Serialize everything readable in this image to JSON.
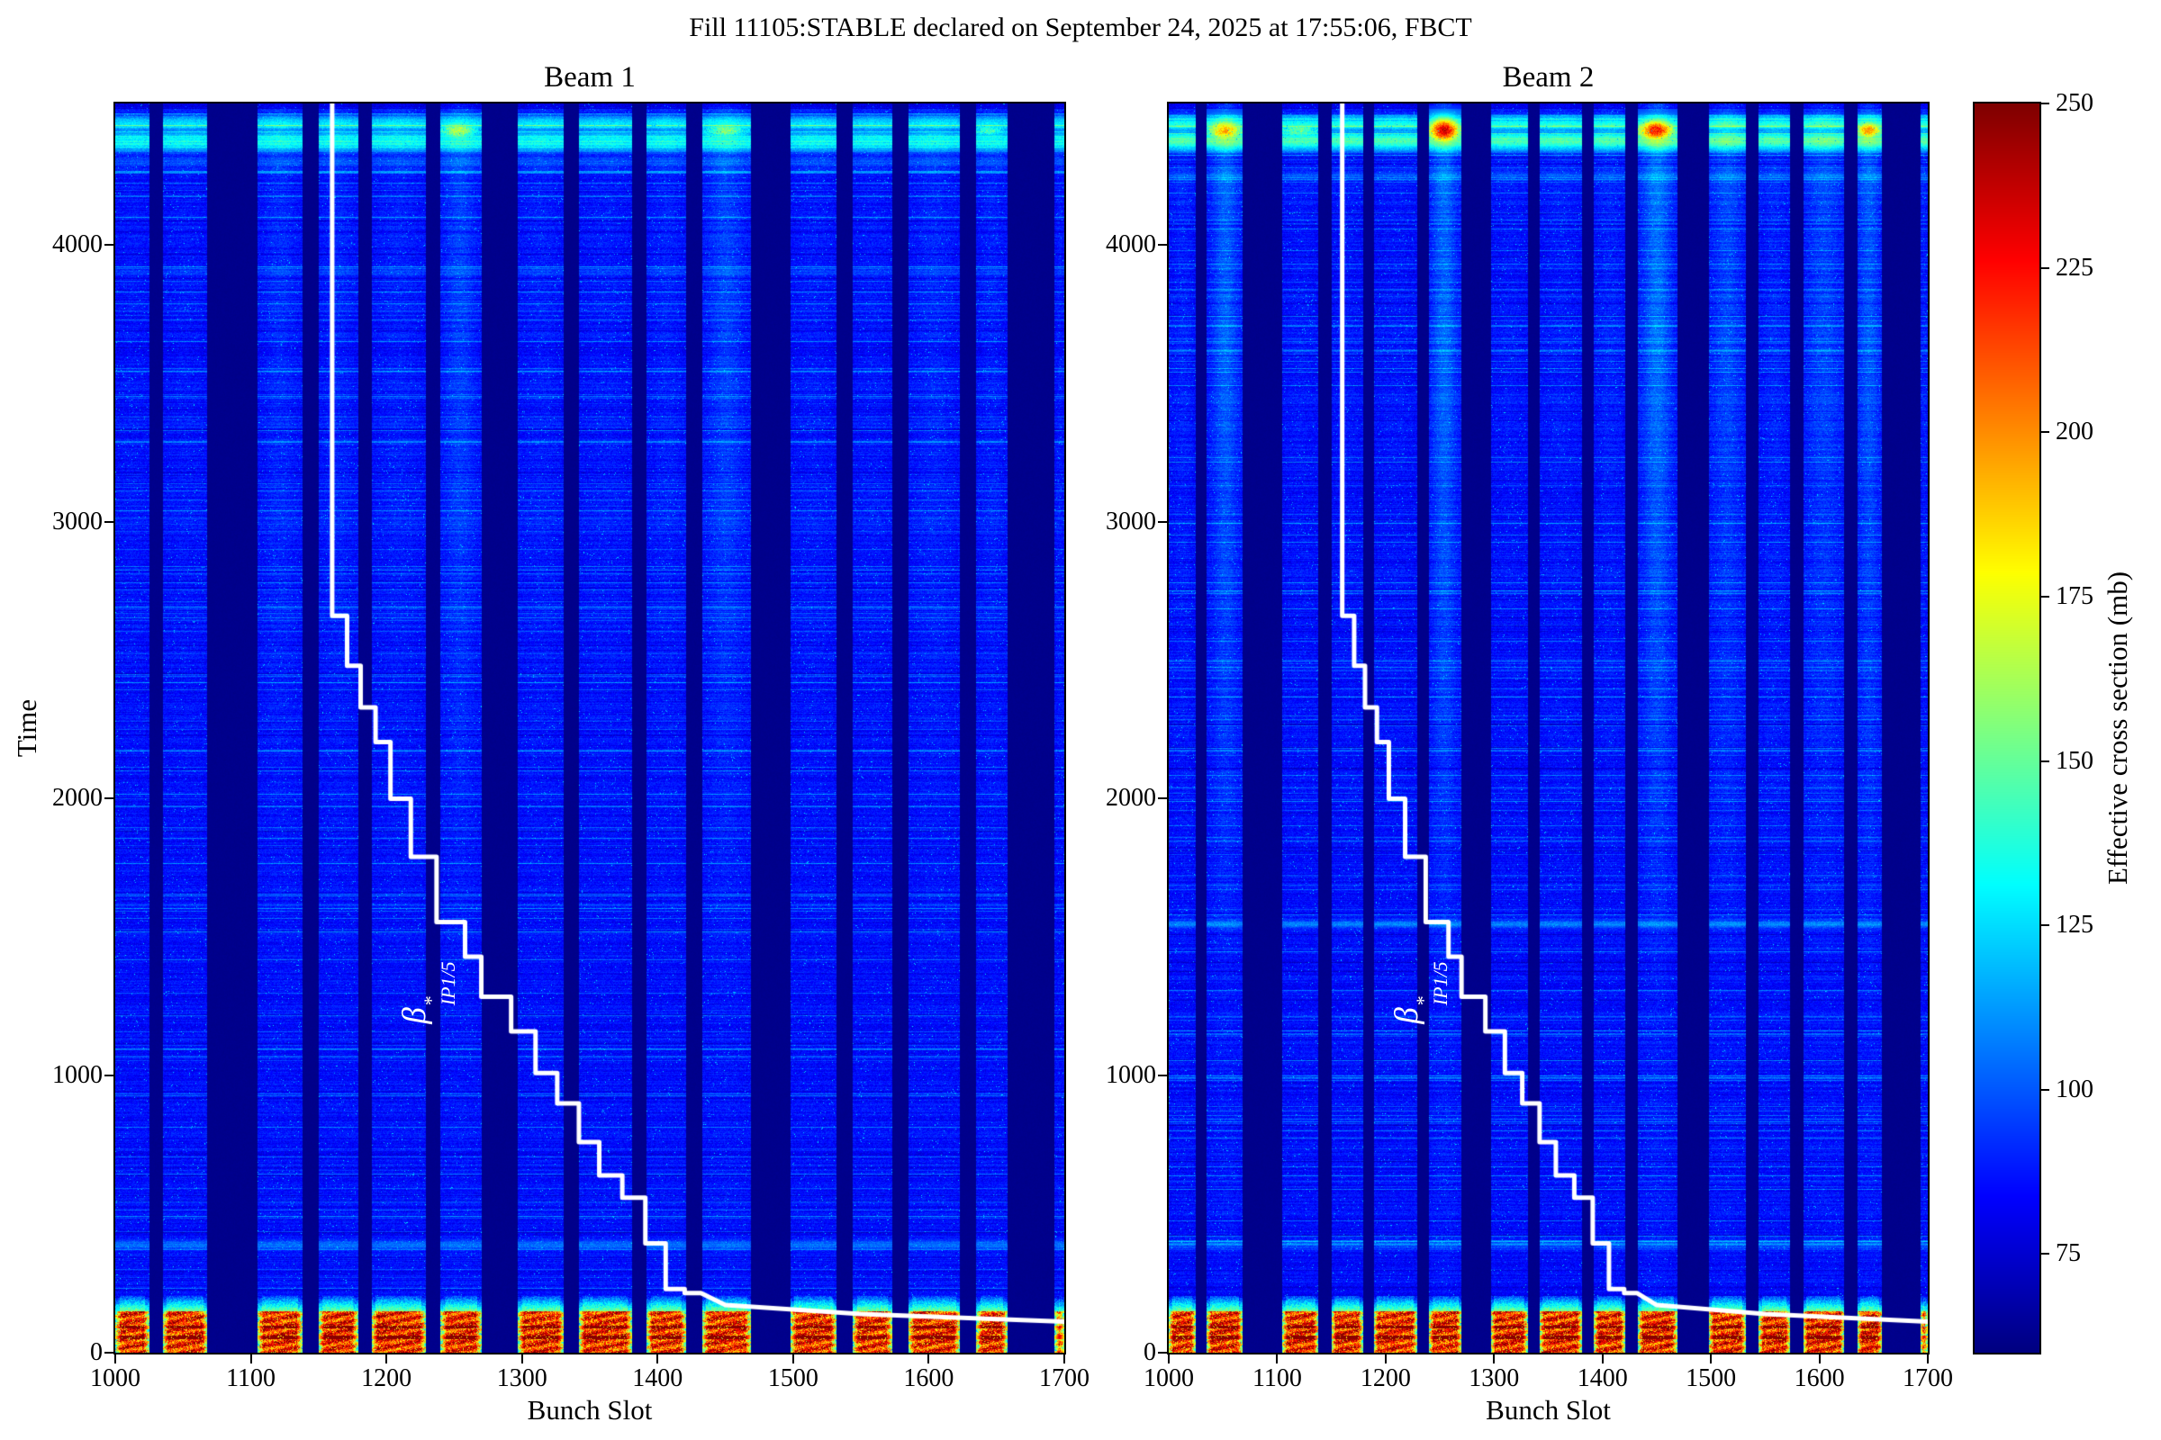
{
  "suptitle": "Fill 11105:STABLE declared on September 24, 2025 at 17:55:06, FBCT",
  "colors": {
    "figure_background": "#ffffff",
    "axis_color": "#000000",
    "beta_line_color": "#ffffff",
    "empty_slot_navy": "#000080",
    "field_blue": "#0020e0",
    "hot_band_red": "#8b0000"
  },
  "beta_label": {
    "base": "β",
    "sup": "*",
    "sub": "IP1/5"
  },
  "chart_data": [
    {
      "type": "heatmap",
      "title": "Beam 1",
      "xlabel": "Bunch Slot",
      "ylabel": "Time",
      "x_range": [
        1000,
        1700
      ],
      "y_range": [
        0,
        4510
      ],
      "x_ticks": [
        1000,
        1100,
        1200,
        1300,
        1400,
        1500,
        1600,
        1700
      ],
      "y_ticks": [
        0,
        1000,
        2000,
        3000,
        4000
      ],
      "colormap": "jet",
      "color_value_range": [
        60,
        250
      ],
      "base_field_value": 85,
      "empty_slot_gaps": [
        [
          1025,
          1035
        ],
        [
          1068,
          1105
        ],
        [
          1138,
          1150
        ],
        [
          1179,
          1189
        ],
        [
          1229,
          1240
        ],
        [
          1270,
          1297
        ],
        [
          1331,
          1342
        ],
        [
          1381,
          1392
        ],
        [
          1421,
          1433
        ],
        [
          1469,
          1498
        ],
        [
          1532,
          1544
        ],
        [
          1573,
          1585
        ],
        [
          1623,
          1635
        ],
        [
          1658,
          1693
        ]
      ],
      "hot_band": {
        "t_range": [
          0,
          150
        ],
        "value_range": [
          190,
          250
        ],
        "maroon_rows_t": [
          55,
          92
        ]
      },
      "fringe_band": {
        "t_range": [
          150,
          205
        ]
      },
      "top_streak_rows": [
        {
          "t": 4455,
          "boost": 26
        },
        {
          "t": 4430,
          "boost": 42
        },
        {
          "t": 4395,
          "boost": 34
        },
        {
          "t": 4370,
          "boost": 46
        },
        {
          "t": 4345,
          "boost": 24
        },
        {
          "t": 4298,
          "boost": 12
        }
      ],
      "hot_spots": [
        {
          "slots": [
            1243,
            1262
          ],
          "t": [
            4385,
            4440
          ],
          "boost": 55
        },
        {
          "slots": [
            1440,
            1460
          ],
          "t": [
            4390,
            4435
          ],
          "boost": 48
        },
        {
          "slots": [
            1636,
            1652
          ],
          "t": [
            4395,
            4430
          ],
          "boost": 34
        }
      ],
      "column_glows": [
        {
          "slots": [
            1242,
            1266
          ],
          "boost": 7
        },
        {
          "slots": [
            1436,
            1464
          ],
          "boost": 6
        }
      ],
      "highlight_rows": [
        {
          "t": 390,
          "boost": 20
        },
        {
          "t": 3900,
          "boost": 8
        }
      ],
      "beta_star_line": {
        "label": "β*_IP1/5",
        "points": [
          [
            1160,
            4510
          ],
          [
            1160,
            2660
          ],
          [
            1171,
            2660
          ],
          [
            1171,
            2480
          ],
          [
            1181,
            2480
          ],
          [
            1181,
            2330
          ],
          [
            1192,
            2330
          ],
          [
            1192,
            2205
          ],
          [
            1203,
            2205
          ],
          [
            1203,
            2000
          ],
          [
            1218,
            2000
          ],
          [
            1218,
            1790
          ],
          [
            1237,
            1790
          ],
          [
            1237,
            1555
          ],
          [
            1258,
            1555
          ],
          [
            1258,
            1430
          ],
          [
            1270,
            1430
          ],
          [
            1270,
            1285
          ],
          [
            1292,
            1285
          ],
          [
            1292,
            1160
          ],
          [
            1310,
            1160
          ],
          [
            1310,
            1010
          ],
          [
            1326,
            1010
          ],
          [
            1326,
            900
          ],
          [
            1342,
            900
          ],
          [
            1342,
            760
          ],
          [
            1357,
            760
          ],
          [
            1357,
            640
          ],
          [
            1374,
            640
          ],
          [
            1374,
            560
          ],
          [
            1391,
            560
          ],
          [
            1391,
            395
          ],
          [
            1406,
            395
          ],
          [
            1406,
            230
          ],
          [
            1420,
            230
          ],
          [
            1420,
            215
          ],
          [
            1432,
            215
          ],
          [
            1450,
            172
          ],
          [
            1550,
            140
          ],
          [
            1700,
            112
          ]
        ]
      }
    },
    {
      "type": "heatmap",
      "title": "Beam 2",
      "xlabel": "Bunch Slot",
      "ylabel": "",
      "x_range": [
        1000,
        1700
      ],
      "y_range": [
        0,
        4510
      ],
      "x_ticks": [
        1000,
        1100,
        1200,
        1300,
        1400,
        1500,
        1600,
        1700
      ],
      "y_ticks": [
        0,
        1000,
        2000,
        3000,
        4000
      ],
      "colormap": "jet",
      "color_value_range": [
        60,
        250
      ],
      "base_field_value": 85,
      "empty_slot_gaps": [
        [
          1025,
          1035
        ],
        [
          1068,
          1105
        ],
        [
          1138,
          1150
        ],
        [
          1179,
          1189
        ],
        [
          1229,
          1240
        ],
        [
          1270,
          1297
        ],
        [
          1331,
          1342
        ],
        [
          1381,
          1392
        ],
        [
          1421,
          1433
        ],
        [
          1469,
          1498
        ],
        [
          1532,
          1544
        ],
        [
          1573,
          1585
        ],
        [
          1623,
          1635
        ],
        [
          1658,
          1693
        ]
      ],
      "hot_band": {
        "t_range": [
          0,
          150
        ],
        "value_range": [
          190,
          250
        ],
        "maroon_rows_t": [
          55,
          92
        ]
      },
      "fringe_band": {
        "t_range": [
          150,
          205
        ]
      },
      "top_streak_rows": [
        {
          "t": 4455,
          "boost": 30
        },
        {
          "t": 4430,
          "boost": 50
        },
        {
          "t": 4395,
          "boost": 42
        },
        {
          "t": 4370,
          "boost": 54
        },
        {
          "t": 4345,
          "boost": 28
        },
        {
          "t": 4250,
          "boost": 14
        }
      ],
      "hot_spots": [
        {
          "slots": [
            1040,
            1064
          ],
          "t": [
            4380,
            4445
          ],
          "boost": 85
        },
        {
          "slots": [
            1243,
            1265
          ],
          "t": [
            4375,
            4450
          ],
          "boost": 125
        },
        {
          "slots": [
            1437,
            1462
          ],
          "t": [
            4380,
            4445
          ],
          "boost": 115
        },
        {
          "slots": [
            1636,
            1655
          ],
          "t": [
            4385,
            4440
          ],
          "boost": 90
        },
        {
          "slots": [
            1106,
            1134
          ],
          "t": [
            4390,
            4435
          ],
          "boost": 40
        }
      ],
      "column_glows": [
        {
          "slots": [
            1040,
            1065
          ],
          "boost": 13
        },
        {
          "slots": [
            1242,
            1266
          ],
          "boost": 16
        },
        {
          "slots": [
            1436,
            1464
          ],
          "boost": 14
        },
        {
          "slots": [
            1634,
            1657
          ],
          "boost": 12
        },
        {
          "slots": [
            1498,
            1532
          ],
          "boost": 7
        },
        {
          "slots": [
            1585,
            1623
          ],
          "boost": 8
        }
      ],
      "highlight_rows": [
        {
          "t": 1548,
          "boost": 22
        },
        {
          "t": 390,
          "boost": 16
        }
      ],
      "beta_star_line": {
        "label": "β*_IP1/5",
        "points": [
          [
            1160,
            4510
          ],
          [
            1160,
            2660
          ],
          [
            1171,
            2660
          ],
          [
            1171,
            2480
          ],
          [
            1181,
            2480
          ],
          [
            1181,
            2330
          ],
          [
            1192,
            2330
          ],
          [
            1192,
            2205
          ],
          [
            1203,
            2205
          ],
          [
            1203,
            2000
          ],
          [
            1218,
            2000
          ],
          [
            1218,
            1790
          ],
          [
            1237,
            1790
          ],
          [
            1237,
            1555
          ],
          [
            1258,
            1555
          ],
          [
            1258,
            1430
          ],
          [
            1270,
            1430
          ],
          [
            1270,
            1285
          ],
          [
            1292,
            1285
          ],
          [
            1292,
            1160
          ],
          [
            1310,
            1160
          ],
          [
            1310,
            1010
          ],
          [
            1326,
            1010
          ],
          [
            1326,
            900
          ],
          [
            1342,
            900
          ],
          [
            1342,
            760
          ],
          [
            1357,
            760
          ],
          [
            1357,
            640
          ],
          [
            1374,
            640
          ],
          [
            1374,
            560
          ],
          [
            1391,
            560
          ],
          [
            1391,
            395
          ],
          [
            1406,
            395
          ],
          [
            1406,
            230
          ],
          [
            1420,
            230
          ],
          [
            1420,
            215
          ],
          [
            1432,
            215
          ],
          [
            1450,
            172
          ],
          [
            1550,
            140
          ],
          [
            1700,
            112
          ]
        ]
      }
    },
    {
      "type": "colorbar",
      "label": "Effective cross section (mb)",
      "ticks": [
        250,
        225,
        200,
        175,
        150,
        125,
        100,
        75
      ],
      "range": [
        60,
        250
      ],
      "colormap": "jet"
    }
  ]
}
